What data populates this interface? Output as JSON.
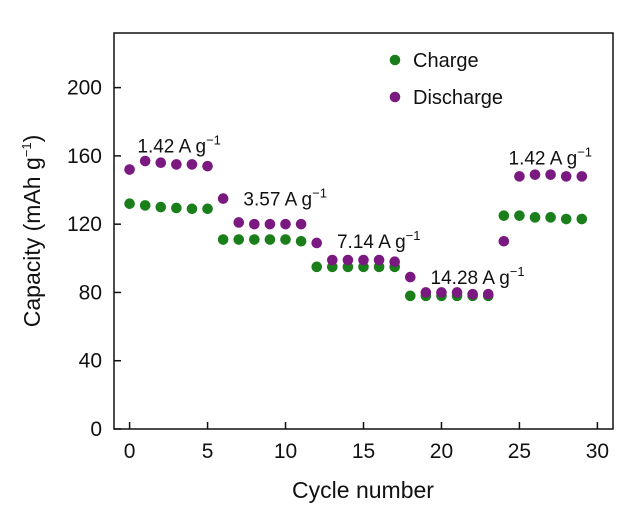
{
  "chart_data": {
    "type": "scatter",
    "xlabel": "Cycle number",
    "ylabel": {
      "main": "Capacity (mAh g",
      "sup": "−1",
      "close": ")"
    },
    "xlim": [
      -1,
      31
    ],
    "ylim": [
      0,
      232
    ],
    "xticks": [
      0,
      5,
      10,
      15,
      20,
      25,
      30
    ],
    "yticks": [
      0,
      40,
      80,
      120,
      160,
      200
    ],
    "legend_position": "top-right",
    "series": [
      {
        "name": "Charge",
        "color": "#1a7f1a",
        "x": [
          0,
          1,
          2,
          3,
          4,
          5,
          6,
          7,
          8,
          9,
          10,
          11,
          12,
          13,
          14,
          15,
          16,
          17,
          18,
          19,
          20,
          21,
          22,
          23,
          24,
          25,
          26,
          27,
          28,
          29
        ],
        "values": [
          132,
          131,
          130,
          129.5,
          129,
          129,
          111,
          111,
          111,
          111,
          111,
          110,
          95,
          95,
          95,
          95,
          95,
          95,
          78,
          78,
          78,
          78,
          78,
          78,
          125,
          125,
          124,
          124,
          123,
          123
        ]
      },
      {
        "name": "Discharge",
        "color": "#7a1a80",
        "x": [
          0,
          1,
          2,
          3,
          4,
          5,
          6,
          7,
          8,
          9,
          10,
          11,
          12,
          13,
          14,
          15,
          16,
          17,
          18,
          19,
          20,
          21,
          22,
          23,
          24,
          25,
          26,
          27,
          28,
          29
        ],
        "values": [
          152,
          157,
          156,
          155,
          155,
          154,
          135,
          121,
          120,
          120,
          120,
          120,
          109,
          99,
          99,
          99,
          99,
          98,
          89,
          80,
          80,
          80,
          79,
          79,
          110,
          148,
          149,
          149,
          148,
          148
        ]
      }
    ],
    "annotations": [
      {
        "text": "1.42 A g",
        "sup": "−1",
        "x": 0.5,
        "y": 162
      },
      {
        "text": "3.57 A g",
        "sup": "−1",
        "x": 7.3,
        "y": 131
      },
      {
        "text": "7.14 A g",
        "sup": "−1",
        "x": 13.3,
        "y": 106
      },
      {
        "text": "14.28 A g",
        "sup": "−1",
        "x": 19.3,
        "y": 85
      },
      {
        "text": "1.42 A g",
        "sup": "−1",
        "x": 24.3,
        "y": 155
      }
    ]
  }
}
